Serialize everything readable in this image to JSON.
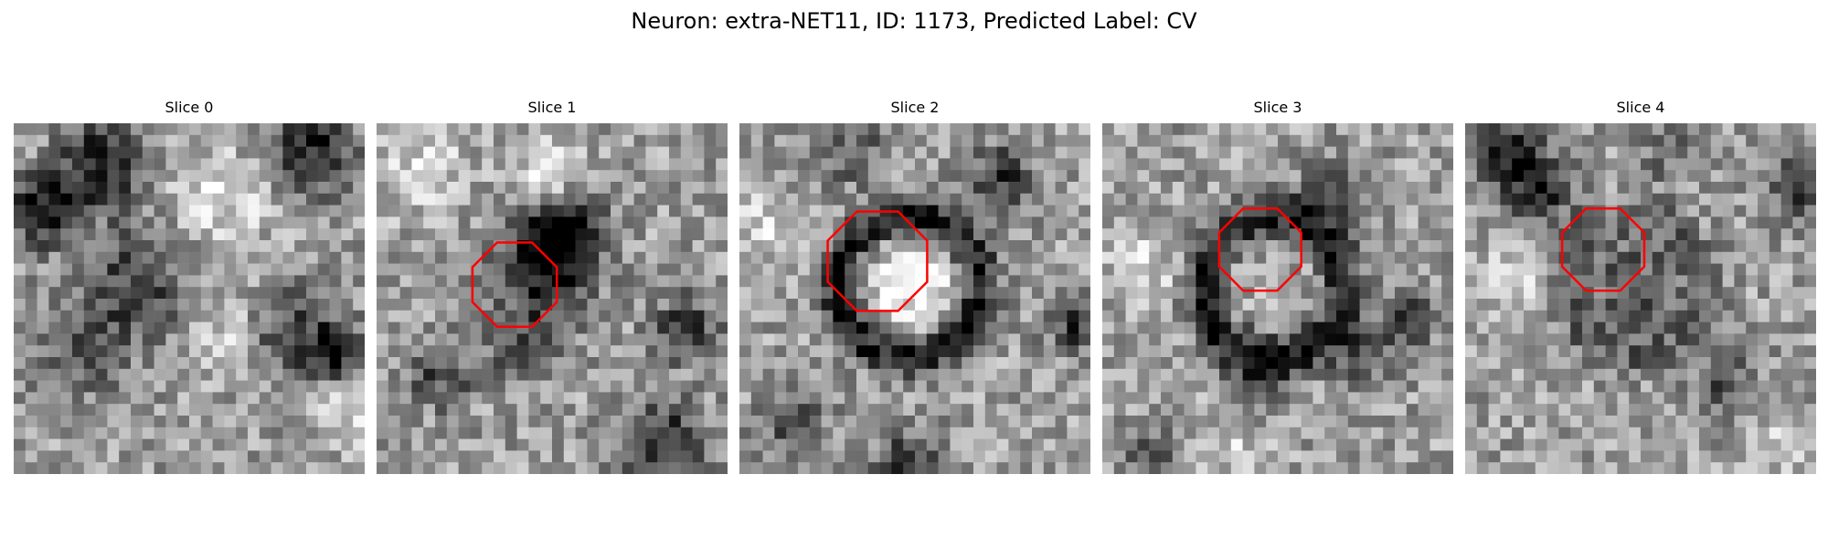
{
  "figure": {
    "title": "Neuron: extra-NET11, ID: 1173, Predicted Label: CV"
  },
  "colormap": "gray",
  "roi_color": "#ff0000",
  "slices": [
    {
      "title": "Slice 0",
      "roi": false
    },
    {
      "title": "Slice 1",
      "roi": true
    },
    {
      "title": "Slice 2",
      "roi": true
    },
    {
      "title": "Slice 3",
      "roi": true
    },
    {
      "title": "Slice 4",
      "roi": true
    }
  ]
}
